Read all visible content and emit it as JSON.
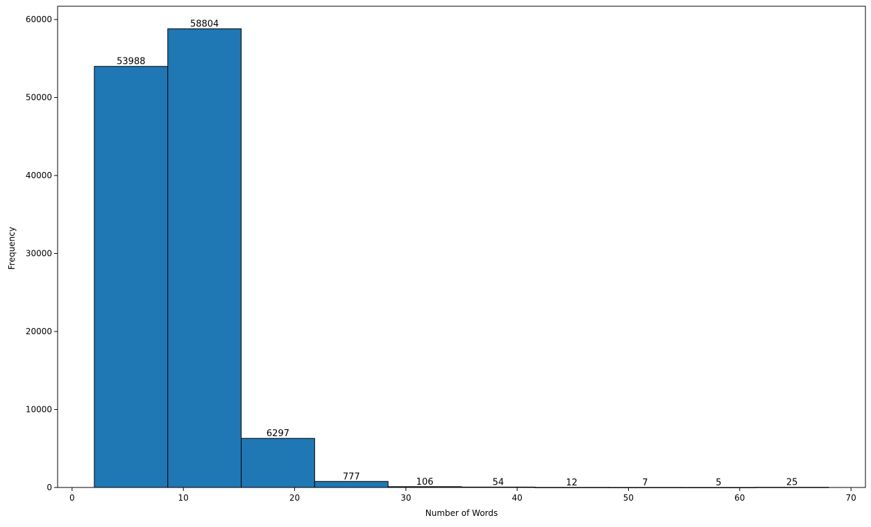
{
  "chart_data": {
    "type": "bar",
    "title": "",
    "xlabel": "Number of Words",
    "ylabel": "Frequency",
    "xlim": [
      -1.3,
      71.3
    ],
    "ylim": [
      0,
      61700
    ],
    "x_ticks": [
      0,
      10,
      20,
      30,
      40,
      50,
      60,
      70
    ],
    "y_ticks": [
      0,
      10000,
      20000,
      30000,
      40000,
      50000,
      60000
    ],
    "bin_edges": [
      2,
      8.6,
      15.2,
      21.8,
      28.4,
      35,
      41.6,
      48.2,
      54.8,
      61.4,
      68
    ],
    "values": [
      53988,
      58804,
      6297,
      777,
      106,
      54,
      12,
      7,
      5,
      25
    ],
    "data_labels": [
      "53988",
      "58804",
      "6297",
      "777",
      "106",
      "54",
      "12",
      "7",
      "5",
      "25"
    ],
    "bar_color": "#1f77b4",
    "edge_color": "#000000",
    "grid": false,
    "legend": "none"
  }
}
